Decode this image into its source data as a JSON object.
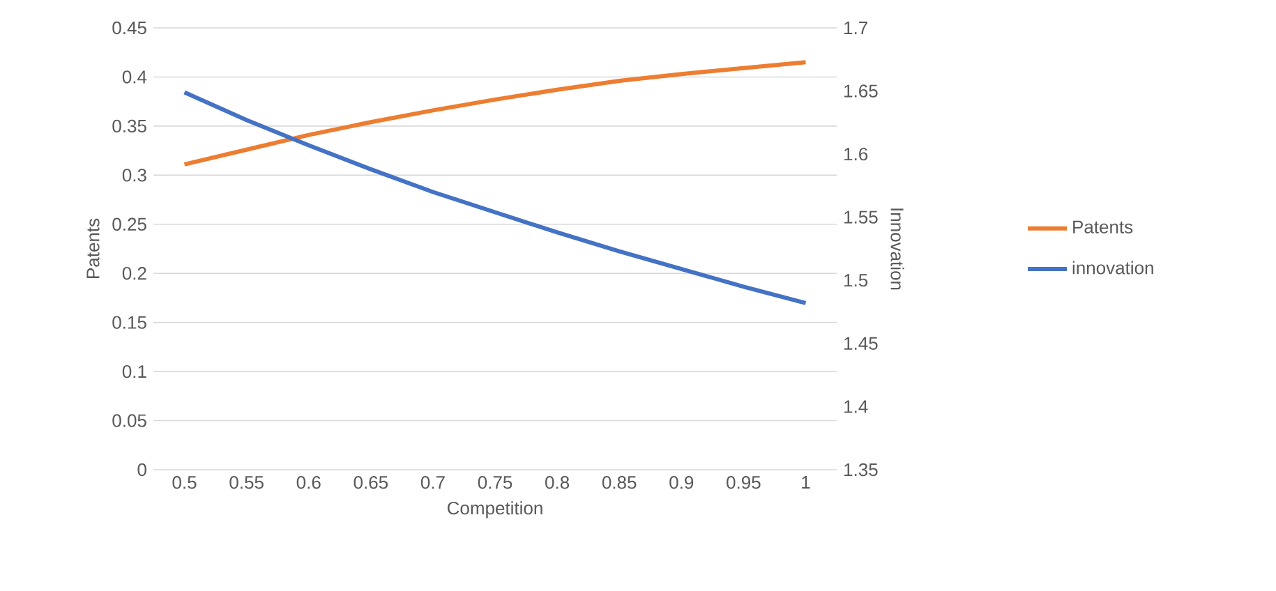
{
  "chart_data": {
    "type": "line",
    "xlabel": "Competition",
    "ylabel": "Patents",
    "y2label": "Innovation",
    "categories": [
      "0.5",
      "0.55",
      "0.6",
      "0.65",
      "0.7",
      "0.75",
      "0.8",
      "0.85",
      "0.9",
      "0.95",
      "1"
    ],
    "series": [
      {
        "name": "Patents",
        "color": "#ed7d31",
        "values": [
          0.311,
          0.326,
          0.341,
          0.354,
          0.366,
          0.377,
          0.387,
          0.396,
          0.403,
          0.409,
          0.415
        ]
      },
      {
        "name": "innovation",
        "color": "#4472c4",
        "axis": "y2",
        "values": [
          1.649,
          1.627,
          1.607,
          1.588,
          1.57,
          1.554,
          1.538,
          1.523,
          1.509,
          1.495,
          1.482
        ]
      }
    ],
    "ylim": [
      0,
      0.45
    ],
    "yticks": [
      0,
      0.05,
      0.1,
      0.15,
      0.2,
      0.25,
      0.3,
      0.35,
      0.4,
      0.45
    ],
    "y2lim": [
      1.35,
      1.7
    ],
    "y2ticks": [
      1.35,
      1.4,
      1.45,
      1.5,
      1.55,
      1.6,
      1.65,
      1.7
    ],
    "grid": "y",
    "legend": "right",
    "marker": "none",
    "line_style": "solid"
  }
}
